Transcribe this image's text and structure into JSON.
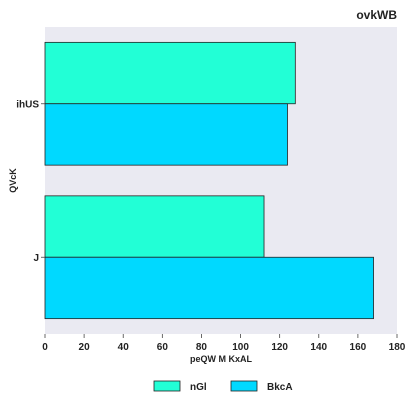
{
  "chart_data": {
    "type": "bar",
    "orientation": "horizontal",
    "title": "ovkWB",
    "xlabel": "peQW M KxAL",
    "ylabel": "QVcK",
    "categories": [
      "ihUS",
      "J"
    ],
    "series": [
      {
        "name": "nGl",
        "values": [
          128,
          112
        ],
        "color": "#22ffd6"
      },
      {
        "name": "BkcA",
        "values": [
          124,
          168
        ],
        "color": "#00d9ff"
      }
    ],
    "xlim": [
      0,
      180
    ],
    "xticks": [
      0,
      20,
      40,
      60,
      80,
      100,
      120,
      140,
      160,
      180
    ],
    "grid": false,
    "legend_position": "bottom-center",
    "background": "#eaeaf2"
  }
}
